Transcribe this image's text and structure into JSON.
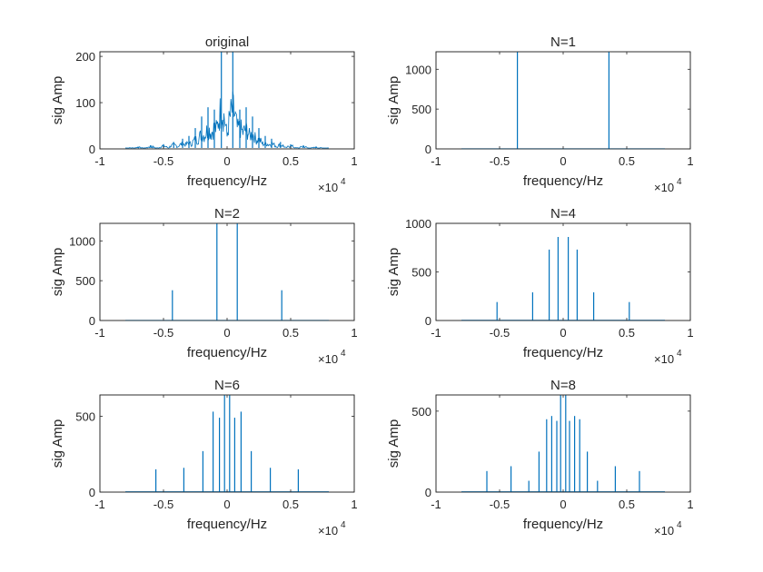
{
  "figure": {
    "background": "#ffffff",
    "line_color": "#0072bd",
    "axis_color": "#262626"
  },
  "chart_data": [
    {
      "type": "line",
      "title": "original",
      "xlabel": "frequency/Hz",
      "ylabel": "sig Amp",
      "x_exponent": "×10",
      "x_exponent_power": "4",
      "xlim": [
        -1,
        1
      ],
      "ylim": [
        0,
        210
      ],
      "xticks": [
        -1,
        -0.5,
        0,
        0.5,
        1
      ],
      "xtick_labels": [
        "-1",
        "-0.5",
        "0",
        "0.5",
        "1"
      ],
      "yticks": [
        0,
        100,
        200
      ],
      "ytick_labels": [
        "0",
        "100",
        "200"
      ],
      "signal_range": [
        -0.8,
        0.8
      ],
      "baseline": 2,
      "peaks": [
        {
          "x": -0.045,
          "y": 210
        },
        {
          "x": 0.045,
          "y": 210
        },
        {
          "x": -0.1,
          "y": 85
        },
        {
          "x": 0.1,
          "y": 85
        },
        {
          "x": -0.15,
          "y": 90
        },
        {
          "x": 0.15,
          "y": 90
        },
        {
          "x": -0.2,
          "y": 70
        },
        {
          "x": 0.2,
          "y": 70
        },
        {
          "x": -0.25,
          "y": 45
        },
        {
          "x": 0.25,
          "y": 45
        },
        {
          "x": -0.3,
          "y": 28
        },
        {
          "x": 0.3,
          "y": 28
        },
        {
          "x": -0.35,
          "y": 22
        },
        {
          "x": 0.35,
          "y": 22
        },
        {
          "x": -0.42,
          "y": 15
        },
        {
          "x": 0.42,
          "y": 15
        },
        {
          "x": -0.5,
          "y": 10
        },
        {
          "x": 0.5,
          "y": 10
        },
        {
          "x": -0.6,
          "y": 8
        },
        {
          "x": 0.6,
          "y": 8
        },
        {
          "x": -0.7,
          "y": 5
        },
        {
          "x": 0.7,
          "y": 5
        }
      ]
    },
    {
      "type": "line",
      "title": "N=1",
      "xlabel": "frequency/Hz",
      "ylabel": "sig Amp",
      "x_exponent": "×10",
      "x_exponent_power": "4",
      "xlim": [
        -1,
        1
      ],
      "ylim": [
        0,
        1220
      ],
      "xticks": [
        -1,
        -0.5,
        0,
        0.5,
        1
      ],
      "xtick_labels": [
        "-1",
        "-0.5",
        "0",
        "0.5",
        "1"
      ],
      "yticks": [
        0,
        500,
        1000
      ],
      "ytick_labels": [
        "0",
        "500",
        "1000"
      ],
      "signal_range": [
        -0.8,
        0.8
      ],
      "baseline": 2,
      "peaks": [
        {
          "x": -0.36,
          "y": 1220
        },
        {
          "x": 0.36,
          "y": 1220
        }
      ]
    },
    {
      "type": "line",
      "title": "N=2",
      "xlabel": "frequency/Hz",
      "ylabel": "sig Amp",
      "x_exponent": "×10",
      "x_exponent_power": "4",
      "xlim": [
        -1,
        1
      ],
      "ylim": [
        0,
        1220
      ],
      "xticks": [
        -1,
        -0.5,
        0,
        0.5,
        1
      ],
      "xtick_labels": [
        "-1",
        "-0.5",
        "0",
        "0.5",
        "1"
      ],
      "yticks": [
        0,
        500,
        1000
      ],
      "ytick_labels": [
        "0",
        "500",
        "1000"
      ],
      "signal_range": [
        -0.8,
        0.8
      ],
      "baseline": 2,
      "peaks": [
        {
          "x": -0.43,
          "y": 380
        },
        {
          "x": -0.08,
          "y": 1220
        },
        {
          "x": 0.08,
          "y": 1220
        },
        {
          "x": 0.43,
          "y": 380
        }
      ]
    },
    {
      "type": "line",
      "title": "N=4",
      "xlabel": "frequency/Hz",
      "ylabel": "sig Amp",
      "x_exponent": "×10",
      "x_exponent_power": "4",
      "xlim": [
        -1,
        1
      ],
      "ylim": [
        0,
        1000
      ],
      "xticks": [
        -1,
        -0.5,
        0,
        0.5,
        1
      ],
      "xtick_labels": [
        "-1",
        "-0.5",
        "0",
        "0.5",
        "1"
      ],
      "yticks": [
        0,
        500,
        1000
      ],
      "ytick_labels": [
        "0",
        "500",
        "1000"
      ],
      "signal_range": [
        -0.8,
        0.8
      ],
      "baseline": 2,
      "peaks": [
        {
          "x": -0.52,
          "y": 190
        },
        {
          "x": -0.24,
          "y": 290
        },
        {
          "x": -0.11,
          "y": 730
        },
        {
          "x": -0.04,
          "y": 860
        },
        {
          "x": 0.04,
          "y": 860
        },
        {
          "x": 0.11,
          "y": 730
        },
        {
          "x": 0.24,
          "y": 290
        },
        {
          "x": 0.52,
          "y": 190
        }
      ]
    },
    {
      "type": "line",
      "title": "N=6",
      "xlabel": "frequency/Hz",
      "ylabel": "sig Amp",
      "x_exponent": "×10",
      "x_exponent_power": "4",
      "xlim": [
        -1,
        1
      ],
      "ylim": [
        0,
        640
      ],
      "xticks": [
        -1,
        -0.5,
        0,
        0.5,
        1
      ],
      "xtick_labels": [
        "-1",
        "-0.5",
        "0",
        "0.5",
        "1"
      ],
      "yticks": [
        0,
        500
      ],
      "ytick_labels": [
        "0",
        "500"
      ],
      "signal_range": [
        -0.8,
        0.8
      ],
      "baseline": 2,
      "peaks": [
        {
          "x": -0.56,
          "y": 150
        },
        {
          "x": -0.34,
          "y": 160
        },
        {
          "x": -0.19,
          "y": 270
        },
        {
          "x": -0.11,
          "y": 530
        },
        {
          "x": -0.06,
          "y": 490
        },
        {
          "x": -0.02,
          "y": 640
        },
        {
          "x": 0.02,
          "y": 640
        },
        {
          "x": 0.06,
          "y": 490
        },
        {
          "x": 0.11,
          "y": 530
        },
        {
          "x": 0.19,
          "y": 270
        },
        {
          "x": 0.34,
          "y": 160
        },
        {
          "x": 0.56,
          "y": 150
        }
      ]
    },
    {
      "type": "line",
      "title": "N=8",
      "xlabel": "frequency/Hz",
      "ylabel": "sig Amp",
      "x_exponent": "×10",
      "x_exponent_power": "4",
      "xlim": [
        -1,
        1
      ],
      "ylim": [
        0,
        600
      ],
      "xticks": [
        -1,
        -0.5,
        0,
        0.5,
        1
      ],
      "xtick_labels": [
        "-1",
        "-0.5",
        "0",
        "0.5",
        "1"
      ],
      "yticks": [
        0,
        500
      ],
      "ytick_labels": [
        "0",
        "500"
      ],
      "signal_range": [
        -0.8,
        0.8
      ],
      "baseline": 2,
      "peaks": [
        {
          "x": -0.6,
          "y": 130
        },
        {
          "x": -0.41,
          "y": 160
        },
        {
          "x": -0.27,
          "y": 70
        },
        {
          "x": -0.19,
          "y": 250
        },
        {
          "x": -0.13,
          "y": 450
        },
        {
          "x": -0.09,
          "y": 470
        },
        {
          "x": -0.05,
          "y": 440
        },
        {
          "x": -0.02,
          "y": 600
        },
        {
          "x": 0.02,
          "y": 600
        },
        {
          "x": 0.05,
          "y": 440
        },
        {
          "x": 0.09,
          "y": 470
        },
        {
          "x": 0.13,
          "y": 450
        },
        {
          "x": 0.19,
          "y": 250
        },
        {
          "x": 0.27,
          "y": 70
        },
        {
          "x": 0.41,
          "y": 160
        },
        {
          "x": 0.6,
          "y": 130
        }
      ]
    }
  ]
}
